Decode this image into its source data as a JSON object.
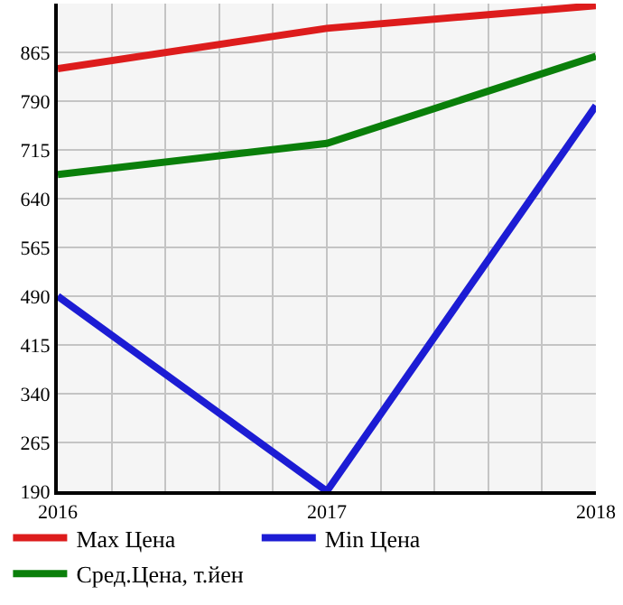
{
  "chart_data": {
    "type": "line",
    "x": [
      2016,
      2017,
      2018
    ],
    "series": [
      {
        "name": "Max Цена",
        "color": "#dd1c1c",
        "values": [
          840,
          902,
          937
        ]
      },
      {
        "name": "Min Цена",
        "color": "#1c1cd4",
        "values": [
          490,
          190,
          783
        ]
      },
      {
        "name": "Сред.Цена, т.йен",
        "color": "#0a7f0a",
        "values": [
          677,
          725,
          859
        ]
      }
    ],
    "xlim": [
      2016,
      2018
    ],
    "xticks": [
      2016,
      {
        "value": 2016.2,
        "label": null
      },
      {
        "value": 2016.4,
        "label": null
      },
      {
        "value": 2016.6,
        "label": null
      },
      {
        "value": 2016.8,
        "label": null
      },
      2017,
      {
        "value": 2017.2,
        "label": null
      },
      {
        "value": 2017.4,
        "label": null
      },
      {
        "value": 2017.6,
        "label": null
      },
      {
        "value": 2017.8,
        "label": null
      },
      2018
    ],
    "ylim": [
      190,
      940
    ],
    "yticks": [
      190,
      265,
      340,
      415,
      490,
      565,
      640,
      715,
      790,
      865
    ],
    "grid": true,
    "legend": "bottom",
    "marker": "none",
    "line_style": "solid"
  }
}
